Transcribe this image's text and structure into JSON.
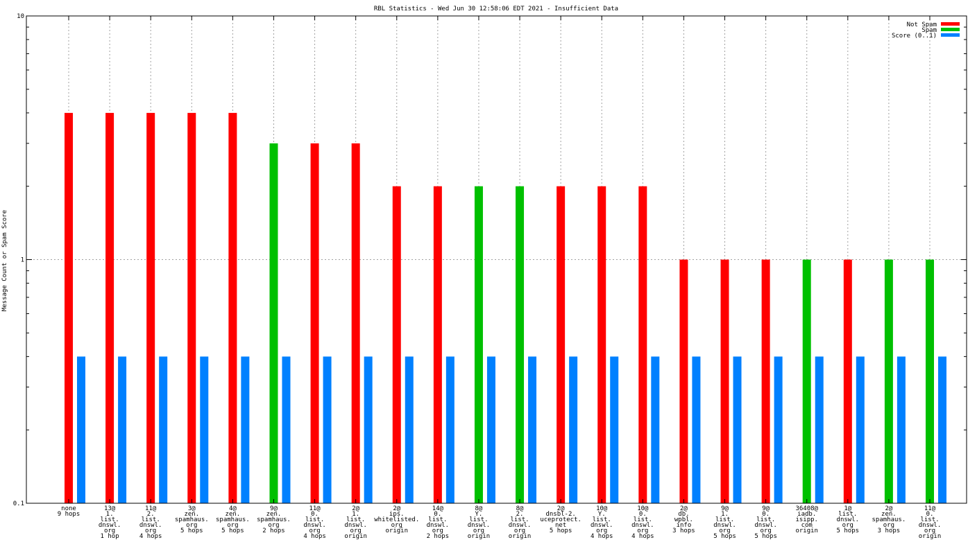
{
  "chart_data": {
    "type": "bar",
    "title": "RBL Statistics - Wed Jun 30 12:58:06 EDT 2021 - Insufficient Data",
    "xlabel": "",
    "ylabel": "Message Count or Spam Score",
    "yscale": "log",
    "ylim": [
      0.1,
      10
    ],
    "yticks": [
      "0.1",
      "1",
      "10"
    ],
    "grid": true,
    "legend_position": "top-right",
    "categories": [
      [
        "none",
        "9 hops"
      ],
      [
        "13@",
        "1.",
        "list.",
        "dnswl.",
        "org",
        "1 hop"
      ],
      [
        "11@",
        "2.",
        "list.",
        "dnswl.",
        "org",
        "4 hops"
      ],
      [
        "3@",
        "zen.",
        "spamhaus.",
        "org",
        "5 hops"
      ],
      [
        "4@",
        "zen.",
        "spamhaus.",
        "org",
        "5 hops"
      ],
      [
        "9@",
        "zen.",
        "spamhaus.",
        "org",
        "2 hops"
      ],
      [
        "11@",
        "0.",
        "list.",
        "dnswl.",
        "org",
        "4 hops"
      ],
      [
        "2@",
        "1.",
        "list.",
        "dnswl.",
        "org",
        "origin"
      ],
      [
        "2@",
        "ips.",
        "whitelisted.",
        "org",
        "origin"
      ],
      [
        "14@",
        "0.",
        "list.",
        "dnswl.",
        "org",
        "2 hops"
      ],
      [
        "8@",
        "Y.",
        "list.",
        "dnswl.",
        "org",
        "origin"
      ],
      [
        "8@",
        "2.",
        "list.",
        "dnswl.",
        "org",
        "origin"
      ],
      [
        "2@",
        "dnsbl-2.",
        "uceprotect.",
        "net",
        "5 hops"
      ],
      [
        "10@",
        "Y.",
        "list.",
        "dnswl.",
        "org",
        "4 hops"
      ],
      [
        "10@",
        "0.",
        "list.",
        "dnswl.",
        "org",
        "4 hops"
      ],
      [
        "2@",
        "db.",
        "wpbl.",
        "info",
        "3 hops"
      ],
      [
        "9@",
        "1.",
        "list.",
        "dnswl.",
        "org",
        "5 hops"
      ],
      [
        "9@",
        "0.",
        "list.",
        "dnswl.",
        "org",
        "5 hops"
      ],
      [
        "36408@",
        "iadb.",
        "isipp.",
        "com",
        "origin"
      ],
      [
        "1@",
        "list.",
        "dnswl.",
        "org",
        "5 hops"
      ],
      [
        "2@",
        "zen.",
        "spamhaus.",
        "org",
        "3 hops"
      ],
      [
        "11@",
        "0.",
        "list.",
        "dnswl.",
        "org",
        "origin"
      ]
    ],
    "series": [
      {
        "name": "Not Spam",
        "color": "#ff0000",
        "values": [
          4,
          4,
          4,
          4,
          4,
          null,
          3,
          3,
          2,
          2,
          null,
          null,
          2,
          2,
          2,
          1,
          1,
          1,
          null,
          1,
          null,
          null
        ]
      },
      {
        "name": "Spam",
        "color": "#00c000",
        "values": [
          null,
          null,
          null,
          null,
          null,
          3,
          null,
          null,
          null,
          null,
          2,
          2,
          null,
          null,
          null,
          null,
          null,
          null,
          1,
          null,
          1,
          1
        ]
      },
      {
        "name": "Score (0..1)",
        "color": "#0080ff",
        "values": [
          0.4,
          0.4,
          0.4,
          0.4,
          0.4,
          0.4,
          0.4,
          0.4,
          0.4,
          0.4,
          0.4,
          0.4,
          0.4,
          0.4,
          0.4,
          0.4,
          0.4,
          0.4,
          0.4,
          0.4,
          0.4,
          0.4
        ]
      }
    ]
  }
}
